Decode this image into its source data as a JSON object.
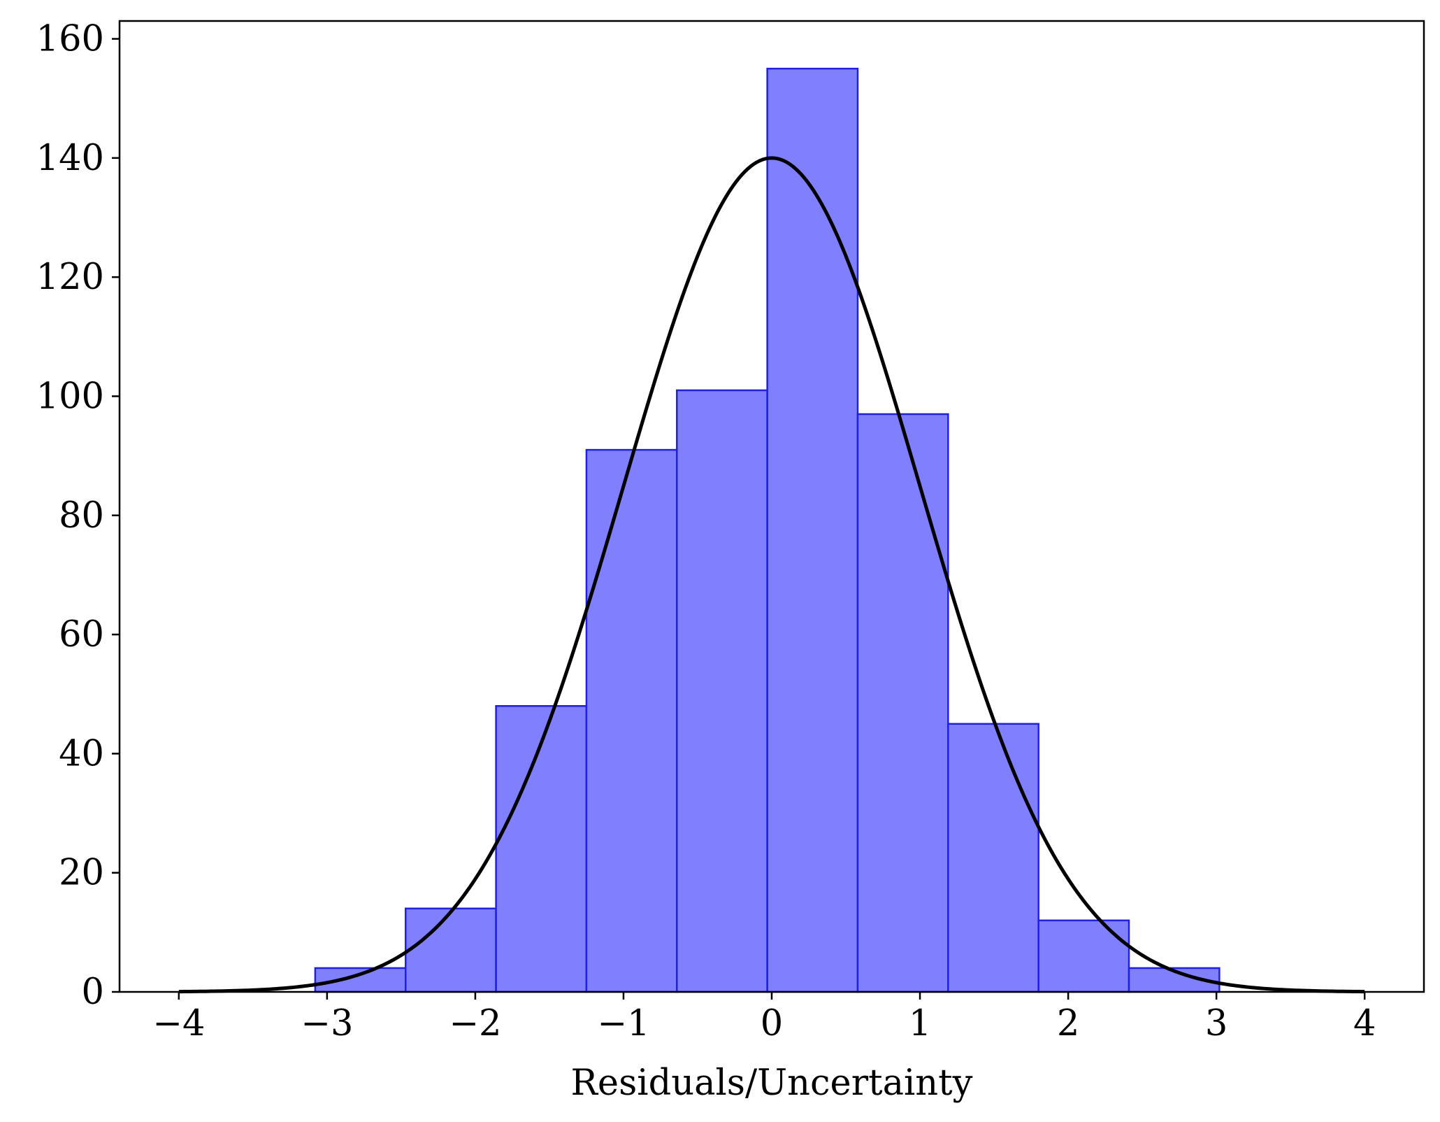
{
  "chart_data": {
    "type": "bar",
    "subtype": "histogram",
    "title": "",
    "xlabel": "Residuals/Uncertainty",
    "ylabel": "",
    "xlim": [
      -4.4,
      4.4
    ],
    "ylim": [
      0,
      163
    ],
    "x_ticks": [
      -4,
      -3,
      -2,
      -1,
      0,
      1,
      2,
      3,
      4
    ],
    "x_tick_labels": [
      "−4",
      "−3",
      "−2",
      "−1",
      "0",
      "1",
      "2",
      "3",
      "4"
    ],
    "y_ticks": [
      0,
      20,
      40,
      60,
      80,
      100,
      120,
      140,
      160
    ],
    "y_tick_labels": [
      "0",
      "20",
      "40",
      "60",
      "80",
      "100",
      "120",
      "140",
      "160"
    ],
    "grid": false,
    "legend": null,
    "bins": {
      "edges": [
        -3.08,
        -2.47,
        -1.86,
        -1.25,
        -0.64,
        -0.03,
        0.58,
        1.19,
        1.8,
        2.41,
        3.02
      ],
      "counts": [
        4,
        14,
        48,
        91,
        101,
        155,
        97,
        45,
        12,
        4
      ]
    },
    "curve": {
      "type": "gaussian",
      "mean": 0.0,
      "sigma": 1.0,
      "peak": 140,
      "x_range": [
        -4,
        4
      ]
    },
    "colors": {
      "bar_fill": "#8080ff",
      "bar_edge": "#2020e0",
      "curve": "#000000",
      "axes": "#000000"
    }
  }
}
